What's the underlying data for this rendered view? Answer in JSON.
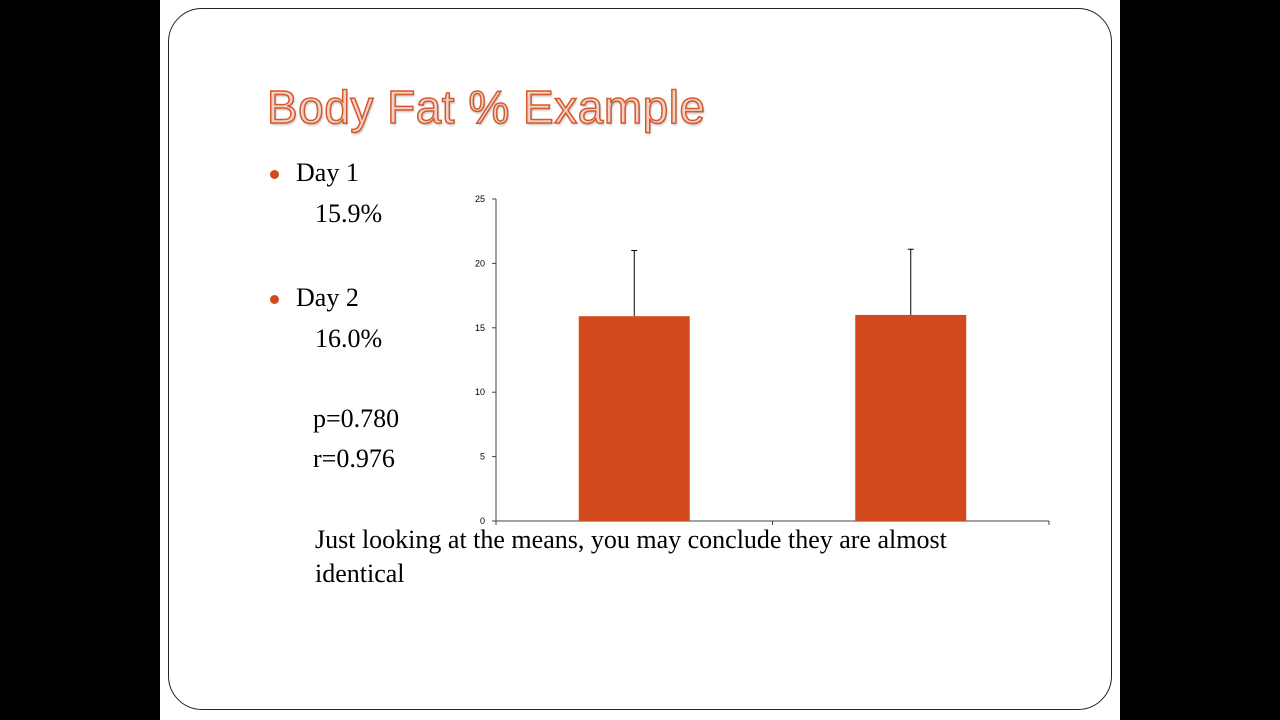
{
  "slide": {
    "title": "Body Fat % Example",
    "bullets": [
      {
        "label": "Day 1",
        "value": "15.9%"
      },
      {
        "label": "Day 2",
        "value": "16.0%"
      }
    ],
    "stats": {
      "p": "p=0.780",
      "r": "r=0.976"
    },
    "conclusion": "Just looking at the means, you may conclude they are almost identical",
    "accent_color": "#d04a1c"
  },
  "chart_data": {
    "type": "bar",
    "categories": [
      "",
      ""
    ],
    "values": [
      15.9,
      16.0
    ],
    "error_upper": [
      21.0,
      21.1
    ],
    "ylim": [
      0,
      25
    ],
    "yticks": [
      0,
      5,
      10,
      15,
      20,
      25
    ],
    "title": "",
    "xlabel": "",
    "ylabel": "",
    "bar_color": "#d04a1c",
    "grid": false,
    "legend": "none"
  }
}
